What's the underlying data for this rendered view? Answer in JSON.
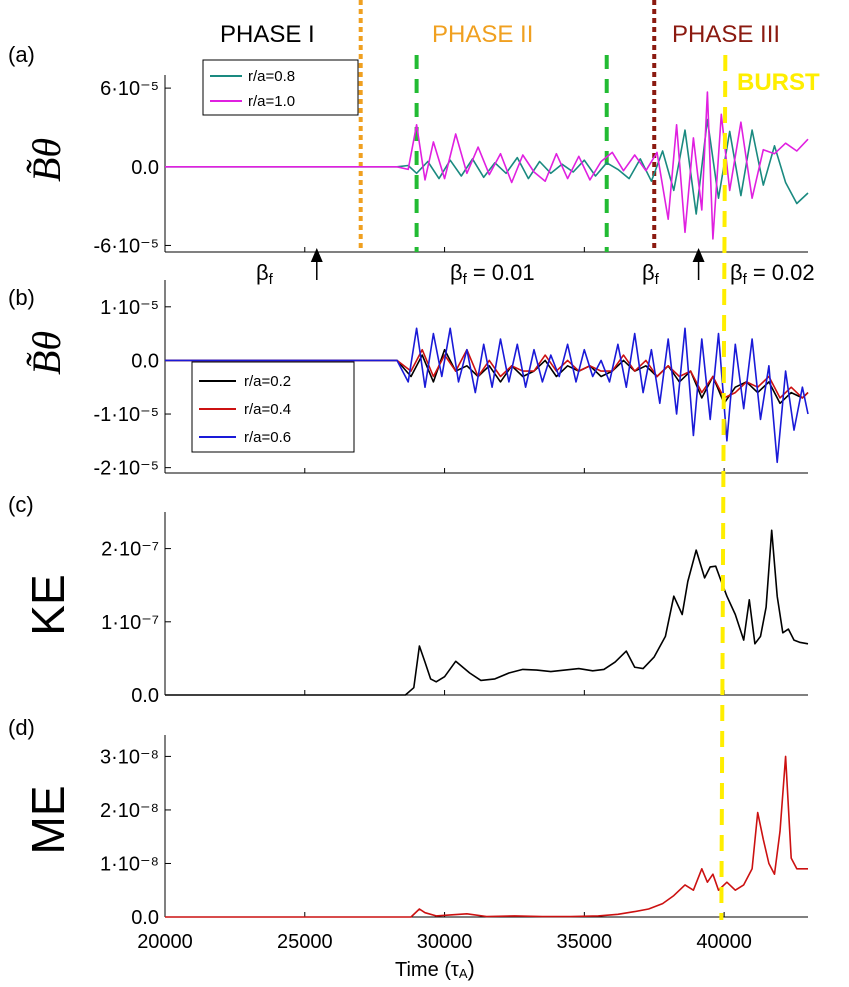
{
  "chart_data": [
    {
      "id": "a",
      "type": "line",
      "panel_label": "(a)",
      "ylabel": "B̃θ",
      "yticks": [
        "6·10⁻⁵",
        "0.0",
        "-6·10⁻⁵"
      ],
      "tick_values": [
        6e-05,
        0,
        -6e-05
      ],
      "ylim": [
        -6.5e-05,
        7e-05
      ],
      "xlim": [
        20000,
        43000
      ],
      "legend": [
        "r/a=0.8",
        "r/a=1.0"
      ],
      "series": [
        {
          "name": "r/a=0.8",
          "color": "#1a8a80",
          "x": [
            20000,
            27500,
            28300,
            28700,
            29000,
            29400,
            29800,
            30200,
            30600,
            31000,
            31400,
            31800,
            32200,
            32600,
            33000,
            33400,
            33800,
            34200,
            34600,
            35000,
            35400,
            35800,
            36200,
            36600,
            37000,
            37400,
            37800,
            38200,
            38600,
            39000,
            39400,
            39800,
            40200,
            40600,
            41000,
            41400,
            41800,
            42200,
            42600,
            43000
          ],
          "y": [
            0,
            0,
            0,
            1e-06,
            -5e-06,
            4e-06,
            -9e-06,
            5e-06,
            -7e-06,
            6e-06,
            -8e-06,
            3e-06,
            -5e-06,
            7e-06,
            -9e-06,
            4e-06,
            -5e-06,
            2e-06,
            -4e-06,
            5e-06,
            -7e-06,
            3e-06,
            -2e-06,
            -9e-06,
            6e-06,
            -1.1e-05,
            1.2e-05,
            -1.8e-05,
            2.8e-05,
            -3.6e-05,
            3.6e-05,
            -2.4e-05,
            2.7e-05,
            -2.2e-05,
            2.8e-05,
            -1.4e-05,
            1.6e-05,
            -1.2e-05,
            -2.8e-05,
            -2e-05
          ]
        },
        {
          "name": "r/a=1.0",
          "color": "#e020e0",
          "x": [
            20000,
            27500,
            28300,
            28700,
            29000,
            29300,
            29600,
            30000,
            30400,
            30800,
            31200,
            31600,
            32000,
            32400,
            32800,
            33200,
            33600,
            34000,
            34400,
            34800,
            35200,
            35600,
            36000,
            36400,
            36800,
            37200,
            37600,
            38000,
            38300,
            38600,
            38900,
            39200,
            39400,
            39600,
            39900,
            40200,
            40600,
            41000,
            41400,
            41800,
            42200,
            42600,
            43000
          ],
          "y": [
            0,
            0,
            0,
            -2e-06,
            3.2e-05,
            -1e-05,
            1.9e-05,
            -9e-06,
            2.5e-05,
            -5e-06,
            1.5e-05,
            -6e-06,
            1e-05,
            -1.2e-05,
            9e-06,
            -4e-06,
            -1.1e-05,
            1e-05,
            -9e-06,
            8e-06,
            -1e-05,
            4e-06,
            1.1e-05,
            -3e-06,
            9e-06,
            -3e-06,
            1.1e-05,
            -4e-05,
            3.2e-05,
            -5e-05,
            2.2e-05,
            -3.3e-05,
            5.7e-05,
            -5.5e-05,
            4e-05,
            -1.8e-05,
            3.4e-05,
            -2.4e-05,
            1.3e-05,
            1e-05,
            1.8e-05,
            1.2e-05,
            2.1e-05
          ]
        }
      ]
    },
    {
      "id": "b",
      "type": "line",
      "panel_label": "(b)",
      "ylabel": "B̃θ",
      "yticks": [
        "1·10⁻⁵",
        "0.0",
        "-1·10⁻⁵",
        "-2·10⁻⁵"
      ],
      "tick_values": [
        1e-05,
        0,
        -1e-05,
        -2e-05
      ],
      "ylim": [
        -2.1e-05,
        1.5e-05
      ],
      "xlim": [
        20000,
        43000
      ],
      "legend": [
        "r/a=0.2",
        "r/a=0.4",
        "r/a=0.6"
      ],
      "series": [
        {
          "name": "r/a=0.2",
          "color": "#000000",
          "x": [
            20000,
            27500,
            28300,
            28800,
            29200,
            29600,
            30000,
            30400,
            30800,
            31200,
            31600,
            32000,
            32400,
            32800,
            33200,
            33600,
            34000,
            34400,
            34800,
            35200,
            35600,
            36000,
            36400,
            36800,
            37200,
            37600,
            38000,
            38400,
            38800,
            39200,
            39600,
            40000,
            40400,
            40800,
            41200,
            41600,
            42000,
            42400,
            42800,
            43000
          ],
          "y": [
            0,
            0,
            0,
            -3e-06,
            1e-06,
            -4e-06,
            2e-06,
            -2e-06,
            -1e-06,
            -3e-06,
            -1e-06,
            -4e-06,
            -1e-06,
            -3e-06,
            -2e-06,
            0,
            -3e-06,
            -1e-06,
            -2e-06,
            -1e-06,
            -3e-06,
            -2e-06,
            0,
            -2e-06,
            -1e-06,
            -3e-06,
            -1e-06,
            -4e-06,
            -2e-06,
            -7e-06,
            -3e-06,
            -8e-06,
            -5e-06,
            -4e-06,
            -6e-06,
            -4e-06,
            -8e-06,
            -6e-06,
            -7e-06,
            -6e-06
          ]
        },
        {
          "name": "r/a=0.4",
          "color": "#cc1111",
          "x": [
            20000,
            27500,
            28300,
            28800,
            29200,
            29600,
            30000,
            30400,
            30800,
            31200,
            31600,
            32000,
            32400,
            32800,
            33200,
            33600,
            34000,
            34400,
            34800,
            35200,
            35600,
            36000,
            36400,
            36800,
            37200,
            37600,
            38000,
            38400,
            38800,
            39200,
            39600,
            40000,
            40400,
            40800,
            41200,
            41600,
            42000,
            42400,
            42800,
            43000
          ],
          "y": [
            0,
            0,
            0,
            -2e-06,
            2e-06,
            -3e-06,
            1e-06,
            -2e-06,
            2e-06,
            -3e-06,
            0,
            -3e-06,
            -1e-06,
            -2e-06,
            -2e-06,
            1e-06,
            -2e-06,
            0,
            -2e-06,
            -1e-06,
            -2e-06,
            -2e-06,
            1e-06,
            -2e-06,
            0,
            -3e-06,
            -1e-06,
            -3e-06,
            -2e-06,
            -6e-06,
            -3e-06,
            -7e-06,
            -6e-06,
            -4e-06,
            -5e-06,
            -3e-06,
            -7e-06,
            -5e-06,
            -7e-06,
            -6e-06
          ]
        },
        {
          "name": "r/a=0.6",
          "color": "#1a1ad8",
          "x": [
            20000,
            27500,
            28300,
            28700,
            29000,
            29300,
            29600,
            29900,
            30200,
            30500,
            30800,
            31100,
            31400,
            31700,
            32000,
            32300,
            32600,
            32900,
            33200,
            33500,
            33800,
            34100,
            34400,
            34700,
            35000,
            35300,
            35600,
            35900,
            36200,
            36500,
            36800,
            37100,
            37400,
            37700,
            38000,
            38300,
            38600,
            38900,
            39200,
            39500,
            39800,
            40100,
            40400,
            40700,
            41000,
            41300,
            41600,
            41900,
            42200,
            42500,
            42800,
            43000
          ],
          "y": [
            0,
            0,
            0,
            -4e-06,
            6e-06,
            -5e-06,
            5e-06,
            -3e-06,
            6e-06,
            -4e-06,
            2e-06,
            -6e-06,
            3e-06,
            -5e-06,
            4e-06,
            -4e-06,
            3e-06,
            -5e-06,
            2e-06,
            -4e-06,
            1e-06,
            -3e-06,
            3e-06,
            -4e-06,
            2e-06,
            -3e-06,
            0,
            -4e-06,
            3e-06,
            -5e-06,
            5e-06,
            -6e-06,
            2e-06,
            -8e-06,
            4e-06,
            -1e-05,
            6e-06,
            -1.4e-05,
            4e-06,
            -1.1e-05,
            5e-06,
            -1.5e-05,
            3e-06,
            -9e-06,
            4e-06,
            -1.1e-05,
            -1e-06,
            -1.9e-05,
            -2e-06,
            -1.3e-05,
            -5e-06,
            -1e-05
          ]
        }
      ]
    },
    {
      "id": "c",
      "type": "line",
      "panel_label": "(c)",
      "ylabel": "KE",
      "yticks": [
        "2·10⁻⁷",
        "1·10⁻⁷",
        "0.0"
      ],
      "tick_values": [
        2e-07,
        1e-07,
        0
      ],
      "ylim": [
        0,
        2.5e-07
      ],
      "xlim": [
        20000,
        43000
      ],
      "series": [
        {
          "name": "KE",
          "color": "#000000",
          "x": [
            20000,
            28600,
            28900,
            29100,
            29300,
            29500,
            29700,
            30000,
            30400,
            30900,
            31300,
            31800,
            32300,
            32800,
            33300,
            33800,
            34300,
            34800,
            35300,
            35700,
            36100,
            36500,
            36800,
            37100,
            37500,
            37900,
            38200,
            38500,
            38700,
            39000,
            39300,
            39500,
            39700,
            39900,
            40100,
            40400,
            40700,
            40900,
            41100,
            41300,
            41500,
            41700,
            41900,
            42100,
            42300,
            42500,
            42700,
            43000
          ],
          "y": [
            0,
            0,
            1e-08,
            6.7e-08,
            4.5e-08,
            2.2e-08,
            1.8e-08,
            2.5e-08,
            4.6e-08,
            3e-08,
            2e-08,
            2.2e-08,
            3e-08,
            3.5e-08,
            3.4e-08,
            3.2e-08,
            3.4e-08,
            3.6e-08,
            3.3e-08,
            3.5e-08,
            4.5e-08,
            6e-08,
            3.8e-08,
            3.6e-08,
            5.2e-08,
            8e-08,
            1.35e-07,
            1.1e-07,
            1.55e-07,
            1.98e-07,
            1.6e-07,
            1.75e-07,
            1.76e-07,
            1.55e-07,
            1.35e-07,
            1.1e-07,
            7.5e-08,
            1.3e-07,
            7e-08,
            8e-08,
            1.2e-07,
            2.25e-07,
            1.35e-07,
            8.5e-08,
            9e-08,
            7.5e-08,
            7.2e-08,
            7e-08
          ]
        }
      ]
    },
    {
      "id": "d",
      "type": "line",
      "panel_label": "(d)",
      "ylabel": "ME",
      "xlabel": "Time (τ",
      "xlabel_sub": "A",
      "xlabel_end": ")",
      "xticks": [
        "20000",
        "25000",
        "30000",
        "35000",
        "40000"
      ],
      "xtick_values": [
        20000,
        25000,
        30000,
        35000,
        40000
      ],
      "yticks": [
        "3·10⁻⁸",
        "2·10⁻⁸",
        "1·10⁻⁸",
        "0.0"
      ],
      "tick_values": [
        3e-08,
        2e-08,
        1e-08,
        0
      ],
      "ylim": [
        0,
        3.4e-08
      ],
      "xlim": [
        20000,
        43000
      ],
      "series": [
        {
          "name": "ME",
          "color": "#cc1111",
          "x": [
            20000,
            28800,
            29100,
            29300,
            29700,
            30200,
            30800,
            31500,
            32500,
            33500,
            34500,
            35500,
            36200,
            36800,
            37300,
            37800,
            38200,
            38600,
            38900,
            39200,
            39400,
            39600,
            39800,
            40100,
            40400,
            40700,
            41000,
            41200,
            41400,
            41600,
            41800,
            42000,
            42200,
            42400,
            42600,
            43000
          ],
          "y": [
            0,
            0,
            1.5e-09,
            8e-10,
            2e-10,
            4e-10,
            6e-10,
            1e-10,
            2e-10,
            1e-10,
            1e-10,
            2e-10,
            5e-10,
            1e-09,
            1.5e-09,
            2.5e-09,
            4e-09,
            6e-09,
            5e-09,
            9e-09,
            6.5e-09,
            8e-09,
            5e-09,
            6.5e-09,
            5e-09,
            6e-09,
            9e-09,
            1.95e-08,
            1.45e-08,
            1e-08,
            8e-09,
            1.6e-08,
            3e-08,
            1.1e-08,
            9e-09,
            9e-09
          ]
        }
      ]
    }
  ],
  "annotations": {
    "phases": [
      "PHASE I",
      "PHASE II",
      "PHASE III"
    ],
    "phase_colors": [
      "#000000",
      "#f0a020",
      "#8b1a10"
    ],
    "burst_label": "BURST",
    "burst_color": "#ffee00",
    "beta_f_low": "= 0.01",
    "beta_f_high": "= 0.02",
    "beta_symbol": "β",
    "beta_sub": "f",
    "vlines": [
      {
        "x": 27000,
        "color": "#f0a020",
        "style": "dotted"
      },
      {
        "x": 29000,
        "color": "#22bb33",
        "style": "dashed"
      },
      {
        "x": 35800,
        "color": "#22bb33",
        "style": "dashed"
      },
      {
        "x": 37500,
        "color": "#8b1a10",
        "style": "dotted"
      }
    ],
    "burst_x": 39900,
    "arrows_x": [
      25000,
      38800
    ]
  }
}
